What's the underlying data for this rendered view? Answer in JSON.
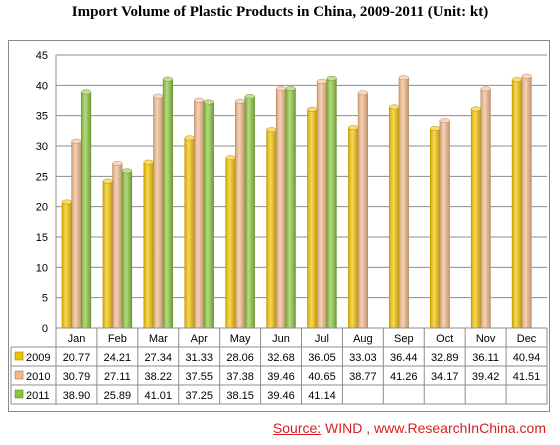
{
  "chart_data": {
    "type": "bar",
    "title": "Import Volume of Plastic Products in China, 2009-2011 (Unit: kt)",
    "categories": [
      "Jan",
      "Feb",
      "Mar",
      "Apr",
      "May",
      "Jun",
      "Jul",
      "Aug",
      "Sep",
      "Oct",
      "Nov",
      "Dec"
    ],
    "series": [
      {
        "name": "2009",
        "values": [
          "20.77",
          "24.21",
          "27.34",
          "31.33",
          "28.06",
          "32.68",
          "36.05",
          "33.03",
          "36.44",
          "32.89",
          "36.11",
          "40.94"
        ],
        "color": "#f2c200"
      },
      {
        "name": "2010",
        "values": [
          "30.79",
          "27.11",
          "38.22",
          "37.55",
          "37.38",
          "39.46",
          "40.65",
          "38.77",
          "41.26",
          "34.17",
          "39.42",
          "41.51"
        ],
        "color": "#f1b98c"
      },
      {
        "name": "2011",
        "values": [
          "38.90",
          "25.89",
          "41.01",
          "37.25",
          "38.15",
          "39.46",
          "41.14",
          null,
          null,
          null,
          null,
          null
        ],
        "color": "#8cc63e"
      }
    ],
    "yticks": [
      "0",
      "5",
      "10",
      "15",
      "20",
      "25",
      "30",
      "35",
      "40",
      "45"
    ],
    "ylim": [
      0,
      45
    ],
    "grid": true,
    "legend": "data table"
  },
  "source": {
    "label": "Source:",
    "text": " WIND , www.ResearchInChina.com"
  }
}
